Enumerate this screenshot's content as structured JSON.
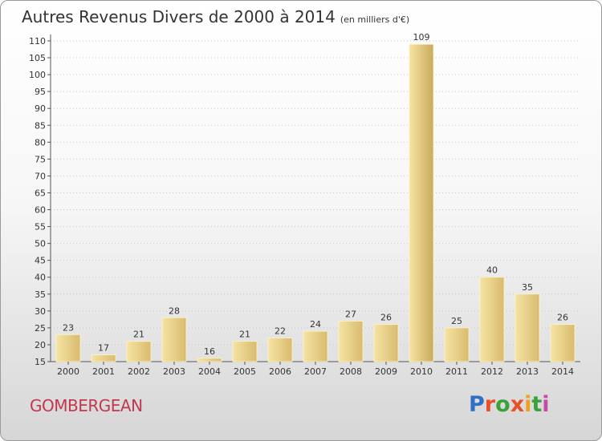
{
  "title": "Autres Revenus Divers de 2000 à 2014",
  "unit": "(en milliers d'€)",
  "place": "GOMBERGEAN",
  "logo": {
    "text": "Proxiti",
    "letter_colors": [
      "#2f6fc6",
      "#e8502a",
      "#3aa23a",
      "#e8502a",
      "#f0a020",
      "#3aa23a",
      "#c84aa8"
    ]
  },
  "colors": {
    "bar_light": "#f6e3a2",
    "bar_dark": "#d7bb6f",
    "bar_highlight": "#c9ab5c",
    "grid": "#c8c8c8",
    "text": "#333333"
  },
  "chart_data": {
    "type": "bar",
    "categories": [
      "2000",
      "2001",
      "2002",
      "2003",
      "2004",
      "2005",
      "2006",
      "2007",
      "2008",
      "2009",
      "2010",
      "2011",
      "2012",
      "2013",
      "2014"
    ],
    "values": [
      23,
      17,
      21,
      28,
      16,
      21,
      22,
      24,
      27,
      26,
      109,
      25,
      40,
      35,
      26
    ],
    "data_labels": [
      "23",
      "17",
      "21",
      "28",
      "16",
      "21",
      "22",
      "24",
      "27",
      "26",
      "109",
      "25",
      "40",
      "35",
      "26"
    ],
    "title": "Autres Revenus Divers de 2000 à 2014",
    "xlabel": "",
    "ylabel": "",
    "ylim": [
      15,
      110
    ],
    "yticks": [
      "15",
      "20",
      "25",
      "30",
      "35",
      "40",
      "45",
      "50",
      "55",
      "60",
      "65",
      "70",
      "75",
      "80",
      "85",
      "90",
      "95",
      "100",
      "105",
      "110"
    ],
    "grid": true,
    "legend": "none"
  }
}
